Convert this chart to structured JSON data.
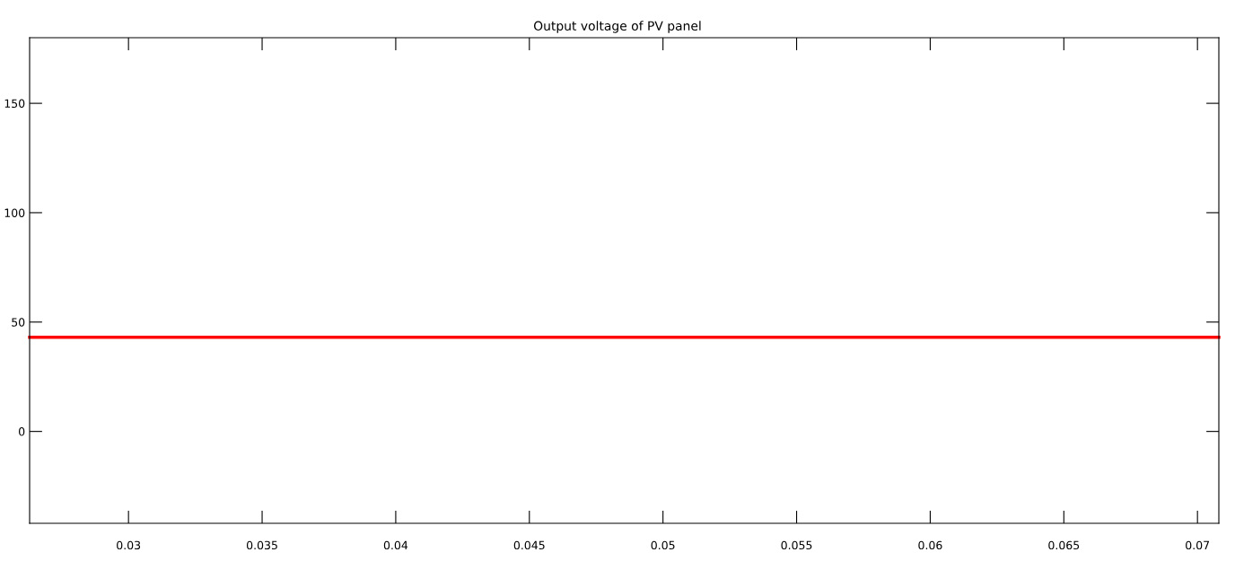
{
  "chart_data": {
    "type": "line",
    "title": "Output voltage of PV panel",
    "x": [
      0.0263,
      0.0708
    ],
    "series": [
      {
        "color": "#ff0000",
        "values": [
          43,
          43
        ]
      }
    ],
    "xlim": [
      0.0263,
      0.0708
    ],
    "xticks": [
      0.03,
      0.035,
      0.04,
      0.045,
      0.05,
      0.055,
      0.06,
      0.065,
      0.07
    ],
    "ylim": [
      -42,
      180
    ],
    "yticks": [
      0,
      50,
      100,
      150
    ],
    "grid": false,
    "legend": false,
    "marker": "none",
    "line_style": "solid"
  }
}
